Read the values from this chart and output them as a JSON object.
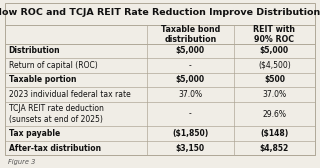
{
  "title": "How ROC and TCJA REIT Rate Reduction Improve Distributions",
  "col_headers": [
    "",
    "Taxable bond\ndistribution",
    "REIT with\n90% ROC"
  ],
  "rows": [
    [
      "Distribution",
      "$5,000",
      "$5,000"
    ],
    [
      "Return of capital (ROC)",
      "-",
      "($4,500)"
    ],
    [
      "Taxable portion",
      "$5,000",
      "$500"
    ],
    [
      "2023 individual federal tax rate",
      "37.0%",
      "37.0%"
    ],
    [
      "TCJA REIT rate deduction\n(sunsets at end of 2025)",
      "-",
      "29.6%"
    ],
    [
      "Tax payable",
      "($1,850)",
      "($148)"
    ],
    [
      "After-tax distribution",
      "$3,150",
      "$4,852"
    ]
  ],
  "bold_rows": [
    0,
    2,
    5,
    6
  ],
  "footer": "Figure 3",
  "bg_color": "#f0ede6",
  "line_color": "#b0a898",
  "text_color": "#111111",
  "title_fontsize": 6.8,
  "body_fontsize": 5.5,
  "header_fontsize": 5.7,
  "col_splits": [
    0.46,
    0.73
  ]
}
